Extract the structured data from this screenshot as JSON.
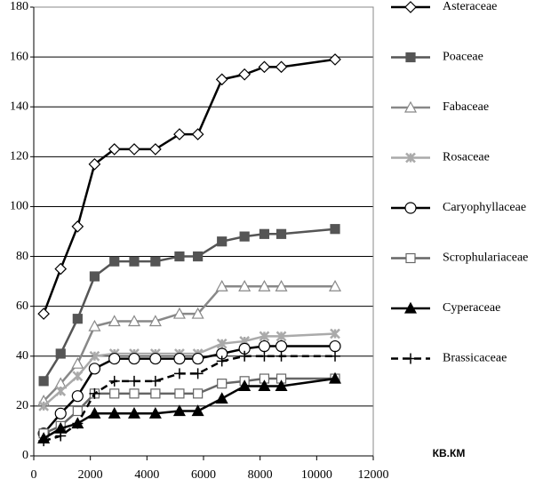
{
  "chart_data": {
    "type": "line",
    "x_label": "КВ.КМ",
    "x": [
      350,
      950,
      1550,
      2150,
      2850,
      3550,
      4300,
      5150,
      5800,
      6650,
      7450,
      8150,
      8750,
      10650
    ],
    "xlim": [
      0,
      12000
    ],
    "xticks": [
      0,
      2000,
      4000,
      6000,
      8000,
      10000,
      12000
    ],
    "ylim": [
      0,
      180
    ],
    "yticks": [
      0,
      20,
      40,
      60,
      80,
      100,
      120,
      140,
      160,
      180
    ],
    "grid": true,
    "legend": "right",
    "series": [
      {
        "name": "Asteraceae",
        "color": "#000000",
        "marker": "diamond",
        "marker_fill": "#ffffff",
        "dash": "solid",
        "values": [
          57,
          75,
          92,
          117,
          123,
          123,
          123,
          129,
          129,
          151,
          153,
          156,
          156,
          159
        ]
      },
      {
        "name": "Poaceae",
        "color": "#555555",
        "marker": "square",
        "marker_fill": "#555555",
        "dash": "solid",
        "values": [
          30,
          41,
          55,
          72,
          78,
          78,
          78,
          80,
          80,
          86,
          88,
          89,
          89,
          91
        ]
      },
      {
        "name": "Fabaceae",
        "color": "#888888",
        "marker": "triangle",
        "marker_fill": "#ffffff",
        "dash": "solid",
        "values": [
          22,
          29,
          37,
          52,
          54,
          54,
          54,
          57,
          57,
          68,
          68,
          68,
          68,
          68
        ]
      },
      {
        "name": "Rosaceae",
        "color": "#aaaaaa",
        "marker": "asterisk",
        "marker_fill": "#aaaaaa",
        "dash": "solid",
        "values": [
          20,
          26,
          32,
          40,
          41,
          41,
          41,
          41,
          41,
          45,
          46,
          48,
          48,
          49
        ]
      },
      {
        "name": "Caryophyllaceae",
        "color": "#000000",
        "marker": "circle",
        "marker_fill": "#ffffff",
        "dash": "solid",
        "values": [
          9,
          17,
          24,
          35,
          39,
          39,
          39,
          39,
          39,
          41,
          43,
          44,
          44,
          44
        ]
      },
      {
        "name": "Scrophulariaceae",
        "color": "#666666",
        "marker": "square",
        "marker_fill": "#ffffff",
        "dash": "solid",
        "values": [
          9,
          12,
          18,
          25,
          25,
          25,
          25,
          25,
          25,
          29,
          30,
          31,
          31,
          31
        ]
      },
      {
        "name": "Cyperaceae",
        "color": "#000000",
        "marker": "triangle",
        "marker_fill": "#000000",
        "dash": "solid",
        "values": [
          7,
          11,
          13,
          17,
          17,
          17,
          17,
          18,
          18,
          23,
          28,
          28,
          28,
          31
        ]
      },
      {
        "name": "Brassicaceae",
        "color": "#000000",
        "marker": "plus",
        "marker_fill": "#000000",
        "dash": "dashed",
        "values": [
          6,
          8,
          13,
          25,
          30,
          30,
          30,
          33,
          33,
          38,
          40,
          40,
          40,
          40
        ]
      }
    ]
  }
}
